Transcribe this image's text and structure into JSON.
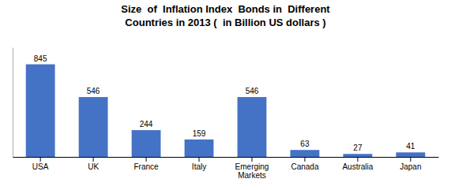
{
  "chart_data": {
    "type": "bar",
    "title": "Size  of  Inflation Index  Bonds in  Different\nCountries in 2013 (  in Billion US dollars )",
    "categories": [
      "USA",
      "UK",
      "France",
      "Italy",
      "Emerging\nMarkets",
      "Canada",
      "Australia",
      "Japan"
    ],
    "values": [
      845,
      546,
      244,
      159,
      546,
      63,
      27,
      41
    ],
    "color": "#4472C4",
    "ylim": [
      0,
      1000
    ],
    "grid": false,
    "data_labels": true,
    "tick_labels": "x"
  }
}
